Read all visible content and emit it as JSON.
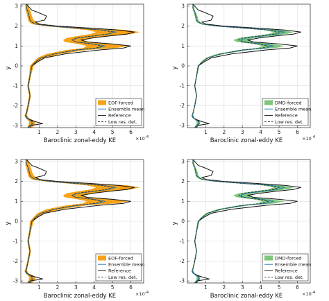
{
  "chart_data": [
    {
      "type": "line",
      "xlabel": "Baroclinic zonal-eddy KE",
      "ylabel": "y",
      "x_scale_label": "×10",
      "x_scale_exp": "-4",
      "xlim": [
        0,
        6.7
      ],
      "ylim": [
        -3.1,
        3.1
      ],
      "xticks": [
        "1",
        "2",
        "3",
        "4",
        "5",
        "6"
      ],
      "yticks": [
        "-3",
        "-2",
        "-1",
        "0",
        "1",
        "2",
        "3"
      ],
      "legend_position": "bottom-right",
      "band_color": "#f5a319",
      "legend": [
        "EOF-forced",
        "Ensemble mean",
        "Reference",
        "Low res. det."
      ],
      "y": [
        -3.1,
        -3.0,
        -2.9,
        -2.8,
        -2.7,
        -2.6,
        -2.5,
        -2.4,
        -2.2,
        -2.0,
        -1.5,
        -1.0,
        -0.5,
        0.0,
        0.2,
        0.4,
        0.6,
        0.8,
        0.9,
        1.0,
        1.1,
        1.2,
        1.3,
        1.4,
        1.5,
        1.6,
        1.7,
        1.8,
        1.9,
        2.0,
        2.1,
        2.2,
        2.3,
        2.5,
        2.7,
        2.8,
        2.9,
        3.1
      ],
      "reference": [
        0.4,
        0.5,
        1.2,
        0.8,
        0.5,
        0.3,
        0.25,
        0.3,
        0.35,
        0.4,
        0.5,
        0.4,
        0.5,
        0.6,
        0.9,
        1.3,
        2.4,
        4.3,
        5.6,
        6.0,
        5.0,
        3.6,
        3.3,
        3.9,
        4.8,
        5.8,
        6.2,
        5.3,
        3.8,
        2.0,
        1.0,
        0.8,
        1.3,
        1.4,
        0.9,
        0.6,
        0.5,
        0.3
      ],
      "ensemble_mean": [
        0.45,
        0.5,
        0.6,
        0.6,
        0.45,
        0.3,
        0.25,
        0.3,
        0.35,
        0.4,
        0.5,
        0.4,
        0.5,
        0.6,
        0.8,
        1.1,
        1.8,
        3.1,
        4.2,
        4.6,
        4.0,
        3.0,
        2.8,
        3.1,
        4.0,
        4.8,
        5.2,
        4.5,
        3.0,
        1.6,
        0.8,
        0.6,
        0.5,
        0.45,
        0.4,
        0.35,
        0.3,
        0.3
      ],
      "low_res_det": [
        0.5,
        0.55,
        0.65,
        0.65,
        0.5,
        0.35,
        0.3,
        0.3,
        0.35,
        0.4,
        0.5,
        0.4,
        0.5,
        0.6,
        0.8,
        1.1,
        1.8,
        3.0,
        4.1,
        4.4,
        3.9,
        3.0,
        2.8,
        3.0,
        3.9,
        4.7,
        5.0,
        4.4,
        3.0,
        1.6,
        0.8,
        0.6,
        0.5,
        0.45,
        0.4,
        0.35,
        0.3,
        0.3
      ],
      "band_lo": [
        0.35,
        0.4,
        0.45,
        0.45,
        0.35,
        0.25,
        0.2,
        0.25,
        0.3,
        0.35,
        0.45,
        0.35,
        0.45,
        0.5,
        0.7,
        0.9,
        1.4,
        2.5,
        3.4,
        3.6,
        3.1,
        2.4,
        2.3,
        2.5,
        3.1,
        3.8,
        4.1,
        3.6,
        2.5,
        1.3,
        0.6,
        0.45,
        0.4,
        0.35,
        0.3,
        0.25,
        0.25,
        0.25
      ],
      "band_hi": [
        0.6,
        0.7,
        0.8,
        0.8,
        0.6,
        0.4,
        0.35,
        0.35,
        0.4,
        0.45,
        0.55,
        0.45,
        0.55,
        0.7,
        0.95,
        1.3,
        2.2,
        3.6,
        5.2,
        5.9,
        5.0,
        3.7,
        3.4,
        4.0,
        5.0,
        6.0,
        6.5,
        5.8,
        3.8,
        2.1,
        1.1,
        0.85,
        0.7,
        0.6,
        0.55,
        0.5,
        0.45,
        0.4
      ]
    },
    {
      "type": "line",
      "xlabel": "Baroclinic zonal-eddy KE",
      "ylabel": "y",
      "x_scale_label": "×10",
      "x_scale_exp": "-4",
      "xlim": [
        0,
        6.7
      ],
      "ylim": [
        -3.1,
        3.1
      ],
      "xticks": [
        "1",
        "2",
        "3",
        "4",
        "5",
        "6"
      ],
      "yticks": [
        "-3",
        "-2",
        "-1",
        "0",
        "1",
        "2",
        "3"
      ],
      "legend_position": "bottom-right",
      "band_color": "#7fc77a",
      "legend": [
        "DMD-forced",
        "Ensemble mean",
        "Reference",
        "Low res. det."
      ],
      "y": [
        -3.1,
        -3.0,
        -2.9,
        -2.8,
        -2.7,
        -2.6,
        -2.5,
        -2.4,
        -2.2,
        -2.0,
        -1.5,
        -1.0,
        -0.5,
        0.0,
        0.2,
        0.4,
        0.6,
        0.8,
        0.9,
        1.0,
        1.1,
        1.2,
        1.3,
        1.4,
        1.5,
        1.6,
        1.7,
        1.8,
        1.9,
        2.0,
        2.1,
        2.2,
        2.3,
        2.5,
        2.7,
        2.8,
        2.9,
        3.1
      ],
      "reference": [
        0.4,
        0.5,
        1.2,
        0.8,
        0.5,
        0.3,
        0.25,
        0.3,
        0.35,
        0.4,
        0.5,
        0.4,
        0.5,
        0.6,
        0.9,
        1.3,
        2.4,
        4.3,
        5.6,
        6.0,
        5.0,
        3.6,
        3.3,
        3.9,
        4.8,
        5.8,
        6.2,
        5.3,
        3.8,
        2.0,
        1.0,
        0.8,
        1.3,
        1.4,
        0.9,
        0.6,
        0.5,
        0.3
      ],
      "ensemble_mean": [
        0.45,
        0.5,
        0.6,
        0.6,
        0.45,
        0.3,
        0.25,
        0.3,
        0.35,
        0.4,
        0.5,
        0.4,
        0.5,
        0.6,
        0.8,
        1.1,
        1.8,
        3.1,
        4.3,
        4.7,
        4.1,
        3.1,
        2.9,
        3.2,
        4.1,
        4.9,
        5.3,
        4.6,
        3.1,
        1.6,
        0.8,
        0.6,
        0.5,
        0.45,
        0.4,
        0.35,
        0.3,
        0.3
      ],
      "low_res_det": [
        0.5,
        0.55,
        0.65,
        0.65,
        0.5,
        0.35,
        0.3,
        0.3,
        0.35,
        0.4,
        0.5,
        0.4,
        0.5,
        0.6,
        0.8,
        1.1,
        1.8,
        3.0,
        4.1,
        4.4,
        3.9,
        3.0,
        2.8,
        3.0,
        3.9,
        4.7,
        5.0,
        4.4,
        3.0,
        1.6,
        0.8,
        0.6,
        0.5,
        0.45,
        0.4,
        0.35,
        0.3,
        0.3
      ],
      "band_lo": [
        0.4,
        0.45,
        0.5,
        0.5,
        0.4,
        0.28,
        0.22,
        0.27,
        0.32,
        0.37,
        0.47,
        0.37,
        0.47,
        0.55,
        0.75,
        1.0,
        1.6,
        2.8,
        3.8,
        4.1,
        3.6,
        2.7,
        2.5,
        2.8,
        3.6,
        4.4,
        4.7,
        4.1,
        2.8,
        1.4,
        0.7,
        0.5,
        0.45,
        0.4,
        0.35,
        0.3,
        0.28,
        0.28
      ],
      "band_hi": [
        0.55,
        0.6,
        0.7,
        0.7,
        0.55,
        0.35,
        0.3,
        0.33,
        0.38,
        0.43,
        0.53,
        0.43,
        0.53,
        0.65,
        0.88,
        1.2,
        2.0,
        3.4,
        4.8,
        5.3,
        4.6,
        3.5,
        3.3,
        3.6,
        4.6,
        5.4,
        5.8,
        5.1,
        3.4,
        1.9,
        0.95,
        0.7,
        0.6,
        0.55,
        0.45,
        0.4,
        0.38,
        0.35
      ]
    },
    {
      "type": "line",
      "xlabel": "Baroclinic zonal-eddy KE",
      "ylabel": "y",
      "x_scale_label": "×10",
      "x_scale_exp": "-4",
      "xlim": [
        0,
        6.7
      ],
      "ylim": [
        -3.1,
        3.1
      ],
      "xticks": [
        "1",
        "2",
        "3",
        "4",
        "5",
        "6"
      ],
      "yticks": [
        "-3",
        "-2",
        "-1",
        "0",
        "1",
        "2",
        "3"
      ],
      "legend_position": "bottom-right",
      "band_color": "#f5a319",
      "legend": [
        "EOF-forced",
        "Ensemble mean",
        "Reference",
        "Low res. det."
      ],
      "y": [
        -3.1,
        -3.0,
        -2.9,
        -2.8,
        -2.7,
        -2.6,
        -2.5,
        -2.4,
        -2.2,
        -2.0,
        -1.5,
        -1.0,
        -0.5,
        0.0,
        0.2,
        0.4,
        0.6,
        0.8,
        0.9,
        1.0,
        1.1,
        1.2,
        1.3,
        1.4,
        1.5,
        1.6,
        1.7,
        1.8,
        1.9,
        2.0,
        2.1,
        2.2,
        2.3,
        2.5,
        2.7,
        2.8,
        2.9,
        3.1
      ],
      "reference": [
        0.4,
        0.5,
        1.2,
        0.8,
        0.5,
        0.3,
        0.25,
        0.3,
        0.35,
        0.4,
        0.5,
        0.4,
        0.5,
        0.6,
        0.9,
        1.3,
        2.4,
        4.3,
        5.6,
        6.0,
        5.0,
        3.6,
        3.3,
        3.9,
        4.8,
        5.8,
        6.2,
        5.3,
        3.8,
        2.0,
        1.0,
        0.8,
        1.3,
        1.4,
        0.9,
        0.6,
        0.5,
        0.3
      ],
      "ensemble_mean": [
        0.45,
        0.5,
        0.6,
        0.6,
        0.45,
        0.3,
        0.25,
        0.3,
        0.35,
        0.4,
        0.5,
        0.4,
        0.5,
        0.6,
        0.8,
        1.1,
        1.8,
        3.1,
        4.2,
        4.6,
        4.0,
        3.0,
        2.8,
        3.1,
        4.0,
        4.8,
        5.2,
        4.5,
        3.0,
        1.6,
        0.8,
        0.6,
        0.5,
        0.45,
        0.4,
        0.35,
        0.3,
        0.3
      ],
      "low_res_det": [
        0.5,
        0.55,
        0.65,
        0.65,
        0.5,
        0.35,
        0.3,
        0.3,
        0.35,
        0.4,
        0.5,
        0.4,
        0.5,
        0.6,
        0.8,
        1.1,
        1.8,
        3.0,
        4.1,
        4.4,
        3.9,
        3.0,
        2.8,
        3.0,
        3.9,
        4.7,
        5.0,
        4.4,
        3.0,
        1.6,
        0.8,
        0.6,
        0.5,
        0.45,
        0.4,
        0.35,
        0.3,
        0.3
      ],
      "band_lo": [
        0.35,
        0.4,
        0.45,
        0.45,
        0.35,
        0.25,
        0.2,
        0.25,
        0.3,
        0.35,
        0.45,
        0.35,
        0.45,
        0.5,
        0.7,
        0.9,
        1.4,
        2.5,
        3.4,
        3.6,
        3.1,
        2.4,
        2.3,
        2.5,
        3.1,
        3.8,
        4.1,
        3.6,
        2.5,
        1.3,
        0.6,
        0.45,
        0.4,
        0.35,
        0.3,
        0.25,
        0.25,
        0.25
      ],
      "band_hi": [
        0.6,
        0.7,
        0.8,
        0.8,
        0.6,
        0.4,
        0.35,
        0.35,
        0.4,
        0.45,
        0.55,
        0.45,
        0.55,
        0.7,
        0.95,
        1.3,
        2.2,
        3.6,
        5.2,
        5.9,
        5.0,
        3.7,
        3.4,
        4.0,
        5.0,
        6.0,
        6.5,
        5.8,
        3.8,
        2.1,
        1.1,
        0.85,
        0.7,
        0.6,
        0.55,
        0.5,
        0.45,
        0.4
      ]
    },
    {
      "type": "line",
      "xlabel": "Baroclinic zonal-eddy KE",
      "ylabel": "y",
      "x_scale_label": "×10",
      "x_scale_exp": "-4",
      "xlim": [
        0,
        6.7
      ],
      "ylim": [
        -3.1,
        3.1
      ],
      "xticks": [
        "1",
        "2",
        "3",
        "4",
        "5",
        "6"
      ],
      "yticks": [
        "-3",
        "-2",
        "-1",
        "0",
        "1",
        "2",
        "3"
      ],
      "legend_position": "bottom-right",
      "band_color": "#7fc77a",
      "legend": [
        "DMD-forced",
        "Ensemble mean",
        "Reference",
        "Low res. det."
      ],
      "y": [
        -3.1,
        -3.0,
        -2.9,
        -2.8,
        -2.7,
        -2.6,
        -2.5,
        -2.4,
        -2.2,
        -2.0,
        -1.5,
        -1.0,
        -0.5,
        0.0,
        0.2,
        0.4,
        0.6,
        0.8,
        0.9,
        1.0,
        1.1,
        1.2,
        1.3,
        1.4,
        1.5,
        1.6,
        1.7,
        1.8,
        1.9,
        2.0,
        2.1,
        2.2,
        2.3,
        2.5,
        2.7,
        2.8,
        2.9,
        3.1
      ],
      "reference": [
        0.4,
        0.5,
        1.2,
        0.8,
        0.5,
        0.3,
        0.25,
        0.3,
        0.35,
        0.4,
        0.5,
        0.4,
        0.5,
        0.6,
        0.9,
        1.3,
        2.4,
        4.3,
        5.6,
        6.0,
        5.0,
        3.6,
        3.3,
        3.9,
        4.8,
        5.8,
        6.2,
        5.3,
        3.8,
        2.0,
        1.0,
        0.8,
        1.3,
        1.4,
        0.9,
        0.6,
        0.5,
        0.3
      ],
      "ensemble_mean": [
        0.45,
        0.5,
        0.6,
        0.6,
        0.45,
        0.3,
        0.25,
        0.3,
        0.35,
        0.4,
        0.5,
        0.4,
        0.5,
        0.6,
        0.8,
        1.1,
        1.8,
        3.1,
        4.3,
        4.7,
        4.1,
        3.1,
        2.9,
        3.2,
        4.1,
        4.9,
        5.3,
        4.6,
        3.1,
        1.6,
        0.8,
        0.6,
        0.5,
        0.45,
        0.4,
        0.35,
        0.3,
        0.3
      ],
      "low_res_det": [
        0.5,
        0.55,
        0.65,
        0.65,
        0.5,
        0.35,
        0.3,
        0.3,
        0.35,
        0.4,
        0.5,
        0.4,
        0.5,
        0.6,
        0.8,
        1.1,
        1.8,
        3.0,
        4.1,
        4.4,
        3.9,
        3.0,
        2.8,
        3.0,
        3.9,
        4.7,
        5.0,
        4.4,
        3.0,
        1.6,
        0.8,
        0.6,
        0.5,
        0.45,
        0.4,
        0.35,
        0.3,
        0.3
      ],
      "band_lo": [
        0.4,
        0.45,
        0.5,
        0.5,
        0.4,
        0.28,
        0.22,
        0.27,
        0.32,
        0.37,
        0.47,
        0.37,
        0.47,
        0.55,
        0.75,
        1.0,
        1.6,
        2.8,
        3.8,
        4.1,
        3.6,
        2.7,
        2.5,
        2.8,
        3.6,
        4.4,
        4.7,
        4.1,
        2.8,
        1.4,
        0.7,
        0.5,
        0.45,
        0.4,
        0.35,
        0.3,
        0.28,
        0.28
      ],
      "band_hi": [
        0.55,
        0.6,
        0.7,
        0.7,
        0.55,
        0.35,
        0.3,
        0.33,
        0.38,
        0.43,
        0.53,
        0.43,
        0.53,
        0.65,
        0.88,
        1.2,
        2.0,
        3.4,
        4.8,
        5.3,
        4.6,
        3.5,
        3.3,
        3.6,
        4.6,
        5.4,
        5.8,
        5.1,
        3.4,
        1.9,
        0.95,
        0.7,
        0.6,
        0.55,
        0.45,
        0.4,
        0.38,
        0.35
      ]
    }
  ]
}
